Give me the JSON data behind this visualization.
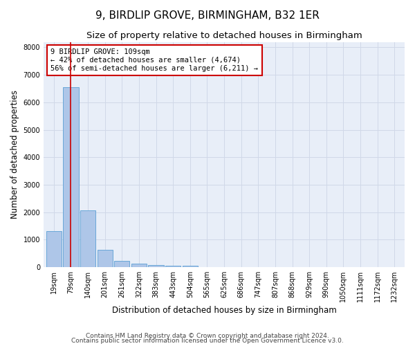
{
  "title": "9, BIRDLIP GROVE, BIRMINGHAM, B32 1ER",
  "subtitle": "Size of property relative to detached houses in Birmingham",
  "xlabel": "Distribution of detached houses by size in Birmingham",
  "ylabel": "Number of detached properties",
  "footnote1": "Contains HM Land Registry data © Crown copyright and database right 2024.",
  "footnote2": "Contains public sector information licensed under the Open Government Licence v3.0.",
  "categories": [
    "19sqm",
    "79sqm",
    "140sqm",
    "201sqm",
    "261sqm",
    "322sqm",
    "383sqm",
    "443sqm",
    "504sqm",
    "565sqm",
    "625sqm",
    "686sqm",
    "747sqm",
    "807sqm",
    "868sqm",
    "929sqm",
    "990sqm",
    "1050sqm",
    "1111sqm",
    "1172sqm",
    "1232sqm"
  ],
  "values": [
    1300,
    6550,
    2060,
    630,
    240,
    120,
    90,
    55,
    55,
    0,
    0,
    0,
    0,
    0,
    0,
    0,
    0,
    0,
    0,
    0,
    0
  ],
  "bar_color": "#aec6e8",
  "bar_edge_color": "#5a9fd4",
  "highlight_bar_index": 1,
  "highlight_color": "#cc0000",
  "annotation_line1": "9 BIRDLIP GROVE: 109sqm",
  "annotation_line2": "← 42% of detached houses are smaller (4,674)",
  "annotation_line3": "56% of semi-detached houses are larger (6,211) →",
  "annotation_box_color": "#cc0000",
  "ylim": [
    0,
    8200
  ],
  "yticks": [
    0,
    1000,
    2000,
    3000,
    4000,
    5000,
    6000,
    7000,
    8000
  ],
  "grid_color": "#d0d8e8",
  "background_color": "#e8eef8",
  "figure_background": "#ffffff",
  "title_fontsize": 11,
  "subtitle_fontsize": 9.5,
  "axis_label_fontsize": 8.5,
  "tick_fontsize": 7,
  "footnote_fontsize": 6.5,
  "annotation_fontsize": 7.5
}
